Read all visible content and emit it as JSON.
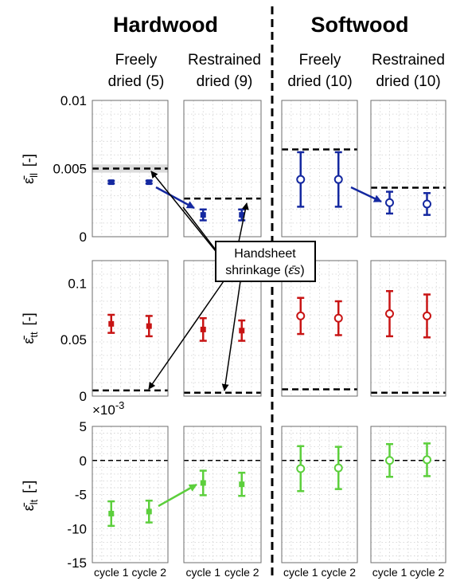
{
  "chart_data": {
    "type": "errorbar",
    "groups": [
      {
        "name": "Hardwood",
        "columns": [
          0,
          1
        ]
      },
      {
        "name": "Softwood",
        "columns": [
          2,
          3
        ]
      }
    ],
    "columns": [
      {
        "title_line1": "Freely",
        "title_line2": "dried (5)",
        "marker": "square"
      },
      {
        "title_line1": "Restrained",
        "title_line2": "dried (9)",
        "marker": "square"
      },
      {
        "title_line1": "Freely",
        "title_line2": "dried (10)",
        "marker": "circle"
      },
      {
        "title_line1": "Restrained",
        "title_line2": "dried (10)",
        "marker": "circle"
      }
    ],
    "x_categories": [
      "cycle 1",
      "cycle 2"
    ],
    "rows": [
      {
        "ylabel": "ε̄ll [-]",
        "ylabel_main": "ε̄",
        "ylabel_sub": "ll",
        "ylabel_unit": "[-]",
        "ylim": [
          0,
          0.01
        ],
        "yticks": [
          0,
          0.005,
          0.01
        ],
        "ytick_labels": [
          "0",
          "0.005",
          "0.01"
        ],
        "color": "#1428a0",
        "shrinkage": [
          0.005,
          0.0028,
          0.0064,
          0.0036
        ],
        "shrinkage_band": [
          0.0047,
          0.0053
        ],
        "means": [
          [
            0.004,
            0.004
          ],
          [
            0.0016,
            0.0016
          ],
          [
            0.0042,
            0.0042
          ],
          [
            0.0025,
            0.0024
          ]
        ],
        "errors": [
          [
            0.0001,
            0.0001
          ],
          [
            0.0004,
            0.0004
          ],
          [
            0.002,
            0.002
          ],
          [
            0.0008,
            0.0008
          ]
        ]
      },
      {
        "ylabel": "ε̄tt [-]",
        "ylabel_main": "ε̄",
        "ylabel_sub": "tt",
        "ylabel_unit": "[-]",
        "ylim": [
          0,
          0.12
        ],
        "yticks": [
          0,
          0.05,
          0.1
        ],
        "ytick_labels": [
          "0",
          "0.05",
          "0.1"
        ],
        "color": "#c81414",
        "shrinkage": [
          0.005,
          0.003,
          0.006,
          0.003
        ],
        "means": [
          [
            0.064,
            0.062
          ],
          [
            0.059,
            0.058
          ],
          [
            0.071,
            0.069
          ],
          [
            0.073,
            0.071
          ]
        ],
        "errors": [
          [
            0.008,
            0.009
          ],
          [
            0.01,
            0.009
          ],
          [
            0.016,
            0.015
          ],
          [
            0.02,
            0.019
          ]
        ]
      },
      {
        "ylabel": "ε̄lt [-]",
        "ylabel_main": "ε̄",
        "ylabel_sub": "lt",
        "ylabel_unit": "[-]",
        "ylim": [
          -0.015,
          0.005
        ],
        "yticks": [
          -0.015,
          -0.01,
          -0.005,
          0,
          0.005
        ],
        "ytick_labels": [
          "-15",
          "-10",
          "-5",
          "0",
          "5"
        ],
        "scale_label": "×10",
        "scale_exp": "-3",
        "color": "#5ccf3c",
        "zero_line": true,
        "means": [
          [
            -0.0078,
            -0.0075
          ],
          [
            -0.0033,
            -0.0035
          ],
          [
            -0.0012,
            -0.0011
          ],
          [
            0.0,
            0.0001
          ]
        ],
        "errors": [
          [
            0.0018,
            0.0016
          ],
          [
            0.0018,
            0.0017
          ],
          [
            0.0033,
            0.0031
          ],
          [
            0.0024,
            0.0024
          ]
        ]
      }
    ],
    "annotation": {
      "line1": "Handsheet",
      "line2": "shrinkage (",
      "symbol": "ε̄s",
      "line2_end": ")"
    },
    "grid": "minor-dotted",
    "separator": "dashed-vertical-between-groups"
  }
}
